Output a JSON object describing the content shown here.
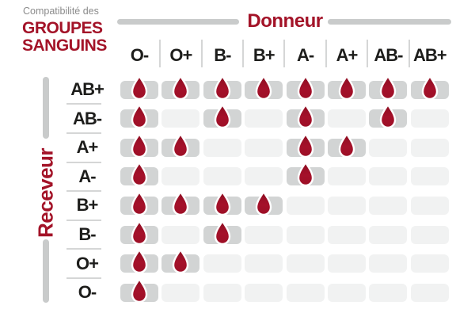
{
  "title": {
    "eyebrow": "Compatibilité des",
    "line1": "GROUPES",
    "line2": "SANGUINS"
  },
  "axes": {
    "donor_label": "Donneur",
    "receiver_label": "Receveur"
  },
  "donors": [
    "O-",
    "O+",
    "B-",
    "B+",
    "A-",
    "A+",
    "AB-",
    "AB+"
  ],
  "receivers": [
    "AB+",
    "AB-",
    "A+",
    "A-",
    "B+",
    "B-",
    "O+",
    "O-"
  ],
  "matrix": [
    [
      1,
      1,
      1,
      1,
      1,
      1,
      1,
      1
    ],
    [
      1,
      0,
      1,
      0,
      1,
      0,
      1,
      0
    ],
    [
      1,
      1,
      0,
      0,
      1,
      1,
      0,
      0
    ],
    [
      1,
      0,
      0,
      0,
      1,
      0,
      0,
      0
    ],
    [
      1,
      1,
      1,
      1,
      0,
      0,
      0,
      0
    ],
    [
      1,
      0,
      1,
      0,
      0,
      0,
      0,
      0
    ],
    [
      1,
      1,
      0,
      0,
      0,
      0,
      0,
      0
    ],
    [
      1,
      0,
      0,
      0,
      0,
      0,
      0,
      0
    ]
  ],
  "icons": {
    "compatible": "blood-drop-icon"
  },
  "colors": {
    "accent_red": "#a31328",
    "drop_red": "#a5112a",
    "drop_red_dark": "#8c0d21",
    "cell_filled": "#d2d4d4",
    "cell_empty": "#f1f2f2",
    "divider": "#d5d6d6",
    "bar": "#c9cbcb",
    "text_dark": "#1d1d1b",
    "text_gray": "#8b8b8b"
  },
  "chart_data": {
    "type": "heatmap",
    "title": "Compatibilité des GROUPES SANGUINS",
    "x_axis_label": "Donneur",
    "y_axis_label": "Receveur",
    "columns": [
      "O-",
      "O+",
      "B-",
      "B+",
      "A-",
      "A+",
      "AB-",
      "AB+"
    ],
    "rows": [
      "AB+",
      "AB-",
      "A+",
      "A-",
      "B+",
      "B-",
      "O+",
      "O-"
    ],
    "values": [
      [
        1,
        1,
        1,
        1,
        1,
        1,
        1,
        1
      ],
      [
        1,
        0,
        1,
        0,
        1,
        0,
        1,
        0
      ],
      [
        1,
        1,
        0,
        0,
        1,
        1,
        0,
        0
      ],
      [
        1,
        0,
        0,
        0,
        1,
        0,
        0,
        0
      ],
      [
        1,
        1,
        1,
        1,
        0,
        0,
        0,
        0
      ],
      [
        1,
        0,
        1,
        0,
        0,
        0,
        0,
        0
      ],
      [
        1,
        1,
        0,
        0,
        0,
        0,
        0,
        0
      ],
      [
        1,
        0,
        0,
        0,
        0,
        0,
        0,
        0
      ]
    ]
  }
}
